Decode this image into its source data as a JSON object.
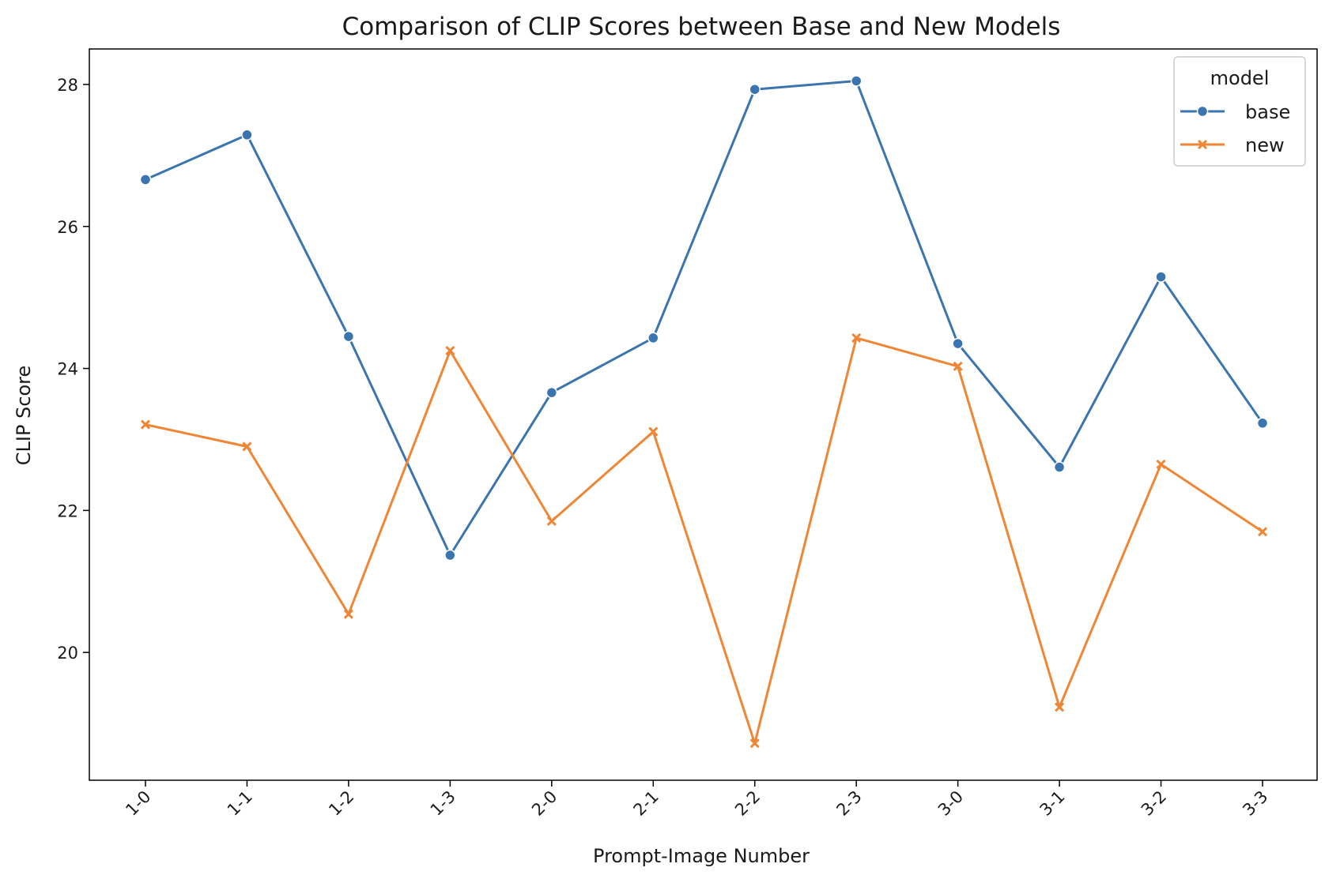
{
  "chart_data": {
    "type": "line",
    "title": "Comparison of CLIP Scores between Base and New Models",
    "xlabel": "Prompt-Image Number",
    "ylabel": "CLIP Score",
    "categories": [
      "1-0",
      "1-1",
      "1-2",
      "1-3",
      "2-0",
      "2-1",
      "2-2",
      "2-3",
      "3-0",
      "3-1",
      "3-2",
      "3-3"
    ],
    "ylim": [
      18.2,
      28.5
    ],
    "yticks": [
      20,
      22,
      24,
      26,
      28
    ],
    "grid": false,
    "legend": {
      "title": "model",
      "placement": "top-right"
    },
    "series": [
      {
        "name": "base",
        "color": "#3b75af",
        "marker": "circle",
        "values": [
          26.66,
          27.29,
          24.45,
          21.37,
          23.66,
          24.43,
          27.93,
          28.05,
          24.35,
          22.61,
          25.29,
          23.23
        ]
      },
      {
        "name": "new",
        "color": "#ef8636",
        "marker": "x",
        "values": [
          23.21,
          22.9,
          20.54,
          24.25,
          21.85,
          23.11,
          18.72,
          24.43,
          24.03,
          19.23,
          22.65,
          21.7
        ]
      }
    ]
  }
}
